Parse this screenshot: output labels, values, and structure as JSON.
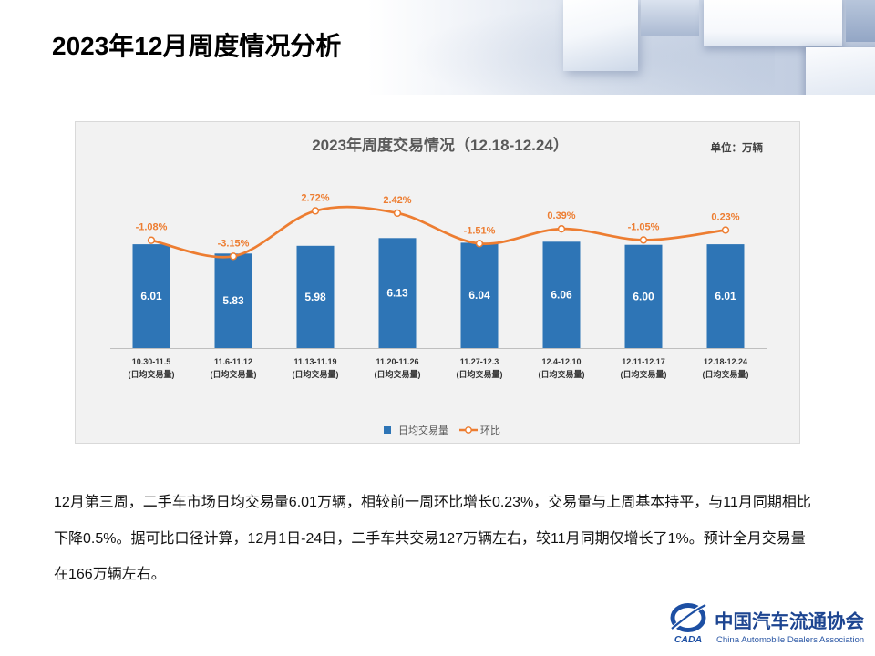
{
  "slide": {
    "title": "2023年12月周度情况分析"
  },
  "chart_data": {
    "type": "bar",
    "title": "2023年周度交易情况（12.18-12.24）",
    "unit_label": "单位：万辆",
    "categories": [
      "10.30-11.5",
      "11.6-11.12",
      "11.13-11.19",
      "11.20-11.26",
      "11.27-12.3",
      "12.4-12.10",
      "12.11-12.17",
      "12.18-12.24"
    ],
    "category_note": "(日均交易量)",
    "series": [
      {
        "name": "日均交易量",
        "type": "bar",
        "values": [
          6.01,
          5.83,
          5.98,
          6.13,
          6.04,
          6.06,
          6.0,
          6.01
        ],
        "labels": [
          "6.01",
          "5.83",
          "5.98",
          "6.13",
          "6.04",
          "6.06",
          "6.00",
          "6.01"
        ],
        "color": "#2E75B6"
      },
      {
        "name": "环比",
        "type": "line",
        "smooth": true,
        "values": [
          -1.08,
          -3.15,
          2.72,
          2.42,
          -1.51,
          0.39,
          -1.05,
          0.23
        ],
        "labels": [
          "-1.08%",
          "-3.15%",
          "2.72%",
          "2.42%",
          "-1.51%",
          "0.39%",
          "-1.05%",
          "0.23%"
        ],
        "color": "#ED7D31"
      }
    ],
    "ylim": [
      4,
      7
    ],
    "y2lim": [
      -15,
      5
    ],
    "grid": false,
    "legend": "bottom-center"
  },
  "body": {
    "lines": [
      "12月第三周，二手车市场日均交易量6.01万辆，相较前一周环比增长0.23%，交易量与上周基本持平，与11月同期相比",
      "下降0.5%。据可比口径计算，12月1日-24日，二手车共交易127万辆左右，较11月同期仅增长了1%。预计全月交易量",
      "在166万辆左右。"
    ]
  },
  "logo": {
    "name_cn": "中国汽车流通协会",
    "name_en": "China Automobile Dealers Association",
    "mark_text": "CADA"
  },
  "colors": {
    "chart_background": "#f2f2f2",
    "chart_border": "#d9d9d9",
    "axis": "#bfbfbf",
    "logo": "#1d4591"
  }
}
